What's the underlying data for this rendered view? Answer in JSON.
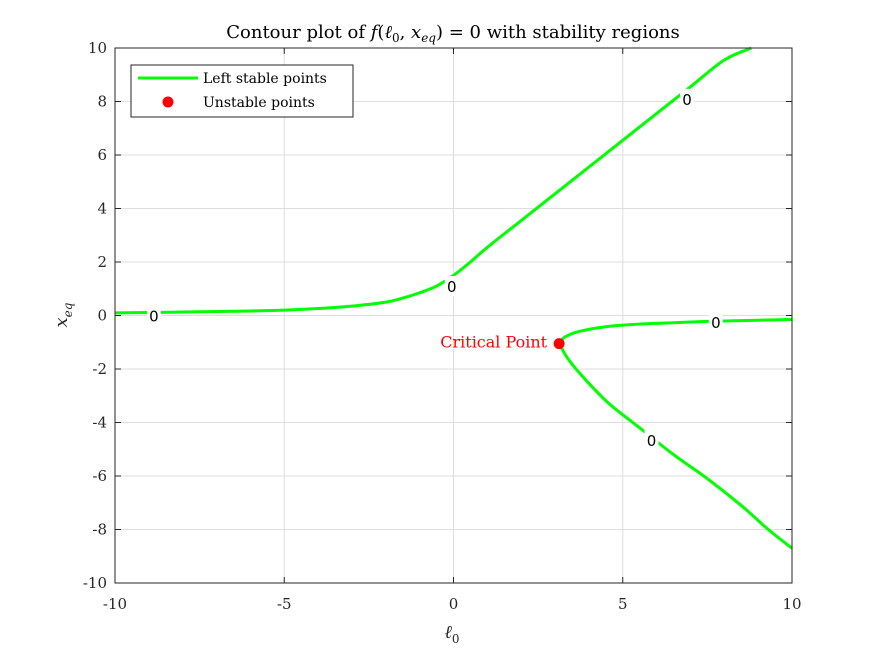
{
  "chart_data": {
    "type": "line",
    "title": "Contour plot of f(ℓ₀, x_eq) = 0 with stability regions",
    "xlabel": "ℓ₀",
    "ylabel": "x_eq",
    "xlim": [
      -10,
      10
    ],
    "ylim": [
      -10,
      10
    ],
    "xticks": [
      -10,
      -5,
      0,
      5,
      10
    ],
    "yticks": [
      -10,
      -8,
      -6,
      -4,
      -2,
      0,
      2,
      4,
      6,
      8,
      10
    ],
    "xtick_labels": [
      "-10",
      "-5",
      "0",
      "5",
      "10"
    ],
    "ytick_labels": [
      "-10",
      "-8",
      "-6",
      "-4",
      "-2",
      "0",
      "2",
      "4",
      "6",
      "8",
      "10"
    ],
    "grid": true,
    "legend_position": "top-left",
    "legend": [
      {
        "label": "Left stable points",
        "marker": "line",
        "color": "#00ff00"
      },
      {
        "label": "Unstable points",
        "marker": "dot",
        "color": "#ff0000"
      }
    ],
    "series": [
      {
        "name": "Left stable points",
        "color": "#00ff00",
        "curves": [
          {
            "x": [
              -10,
              -9,
              -8,
              -7,
              -6,
              -5,
              -4,
              -3,
              -2,
              -1.5,
              -1,
              -0.5,
              0,
              0.5,
              1,
              2,
              3,
              4,
              5,
              6,
              7,
              8,
              8.8
            ],
            "y": [
              0.1,
              0.11,
              0.13,
              0.15,
              0.17,
              0.2,
              0.26,
              0.35,
              0.5,
              0.65,
              0.85,
              1.1,
              1.5,
              2.0,
              2.55,
              3.55,
              4.55,
              5.55,
              6.55,
              7.55,
              8.55,
              9.55,
              10.0
            ]
          },
          {
            "x": [
              3.12,
              3.3,
              3.7,
              4.5,
              5.5,
              6.5,
              7.5,
              8.5,
              9.3,
              10
            ],
            "y": [
              -1.05,
              -0.8,
              -0.6,
              -0.42,
              -0.32,
              -0.27,
              -0.22,
              -0.19,
              -0.17,
              -0.15
            ]
          },
          {
            "x": [
              3.12,
              3.4,
              3.9,
              4.6,
              5.5,
              6.5,
              7.5,
              8.5,
              9.3,
              10
            ],
            "y": [
              -1.05,
              -1.65,
              -2.4,
              -3.3,
              -4.2,
              -5.2,
              -6.1,
              -7.1,
              -8.0,
              -8.7
            ]
          }
        ]
      }
    ],
    "contour_labels": [
      {
        "text": "0",
        "x": -8.85,
        "y": 0.0
      },
      {
        "text": "0",
        "x": -0.05,
        "y": 1.1
      },
      {
        "text": "0",
        "x": 6.9,
        "y": 8.1
      },
      {
        "text": "0",
        "x": 7.75,
        "y": -0.25
      },
      {
        "text": "0",
        "x": 5.85,
        "y": -4.65
      }
    ],
    "points": [
      {
        "name": "Unstable points",
        "x": 3.12,
        "y": -1.05,
        "color": "#ff0000"
      }
    ],
    "annotations": [
      {
        "text": "Critical Point",
        "x": 3.12,
        "y": -1.05,
        "color": "#ff0000"
      }
    ]
  }
}
